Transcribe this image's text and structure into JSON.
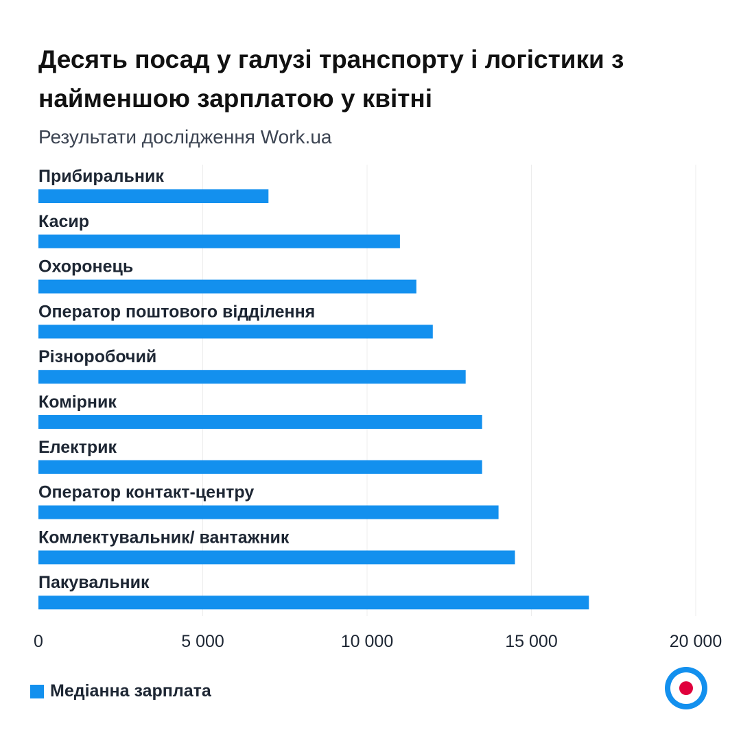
{
  "title": "Десять посад у галузі транспорту і логістики з найменшою зарплатою у квітні",
  "subtitle": "Результати дослідження Work.ua",
  "legend": {
    "label": "Медіанна зарплата"
  },
  "colors": {
    "bar": "#1390ee",
    "grid": "#ececec",
    "logo_ring": "#1390ee",
    "logo_dot": "#e0003c"
  },
  "icons": {
    "logo": "work-ua-logo-icon"
  },
  "chart_data": {
    "type": "bar",
    "orientation": "horizontal",
    "title": "Десять посад у галузі транспорту і логістики з найменшою зарплатою у квітні",
    "subtitle": "Результати дослідження Work.ua",
    "categories": [
      "Прибиральник",
      "Касир",
      "Охоронець",
      "Оператор поштового відділення",
      "Різноробочий",
      "Комірник",
      "Електрик",
      "Оператор контакт-центру",
      "Комлектувальник/ вантажник",
      "Пакувальник"
    ],
    "series": [
      {
        "name": "Медіанна зарплата",
        "values": [
          7000,
          11000,
          11500,
          12000,
          13000,
          13500,
          13500,
          14000,
          14500,
          16750
        ]
      }
    ],
    "xlim": [
      0,
      20000
    ],
    "xticks": [
      0,
      5000,
      10000,
      15000,
      20000
    ],
    "xtick_labels": [
      "0",
      "5 000",
      "10 000",
      "15 000",
      "20 000"
    ],
    "grid": true,
    "legend_position": "bottom-left"
  }
}
